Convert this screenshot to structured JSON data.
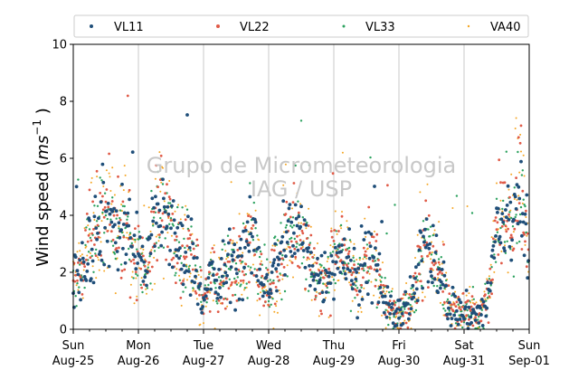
{
  "chart_data": {
    "type": "scatter",
    "ylabel_main": "Wind speed (",
    "ylabel_unit": "ms",
    "ylabel_exp": "−1",
    "ylabel_close": ")",
    "ylim": [
      0,
      10
    ],
    "yticks": [
      "0",
      "2",
      "4",
      "6",
      "8",
      "10"
    ],
    "xlim": [
      "2019-08-25 00:00",
      "2019-09-01 00:00"
    ],
    "xticks": [
      {
        "day": "Sun",
        "date": "Aug-25"
      },
      {
        "day": "Mon",
        "date": "Aug-26"
      },
      {
        "day": "Tue",
        "date": "Aug-27"
      },
      {
        "day": "Wed",
        "date": "Aug-28"
      },
      {
        "day": "Thu",
        "date": "Aug-29"
      },
      {
        "day": "Fri",
        "date": "Aug-30"
      },
      {
        "day": "Sat",
        "date": "Aug-31"
      },
      {
        "day": "Sun",
        "date": "Sep-01"
      }
    ],
    "grid": "vertical at day boundaries",
    "legend_position": "top",
    "watermark": [
      "Grupo de Micrometeorologia",
      "IAG / USP"
    ],
    "series": [
      {
        "name": "VL11",
        "color": "#1f4e79"
      },
      {
        "name": "VL22",
        "color": "#e05a47"
      },
      {
        "name": "VL33",
        "color": "#2ca25f"
      },
      {
        "name": "VA40",
        "color": "#f5a623"
      }
    ],
    "profile_hours_since_start": [
      0,
      3,
      6,
      9,
      12,
      15,
      18,
      21,
      24,
      27,
      30,
      33,
      36,
      39,
      42,
      45,
      48,
      51,
      54,
      57,
      60,
      63,
      66,
      69,
      72,
      75,
      78,
      81,
      84,
      87,
      90,
      93,
      96,
      99,
      102,
      105,
      108,
      111,
      114,
      117,
      120,
      123,
      126,
      129,
      132,
      135,
      138,
      141,
      144,
      147,
      150,
      153,
      156,
      159,
      162,
      165,
      168
    ],
    "profile_speed": [
      1.7,
      2.3,
      2.9,
      3.6,
      3.9,
      3.7,
      3.5,
      3.1,
      2.6,
      2.3,
      3.6,
      4.3,
      3.4,
      2.6,
      2.8,
      2.3,
      0.8,
      2.0,
      1.4,
      2.5,
      2.2,
      2.6,
      3.1,
      2.0,
      1.5,
      2.2,
      3.3,
      3.5,
      3.3,
      2.4,
      2.0,
      1.8,
      2.6,
      2.8,
      2.2,
      1.6,
      2.4,
      2.2,
      1.3,
      0.6,
      0.6,
      0.6,
      1.3,
      3.1,
      2.9,
      2.2,
      0.9,
      0.7,
      0.5,
      0.6,
      0.5,
      1.1,
      3.5,
      3.7,
      3.9,
      5.3,
      2.1
    ]
  }
}
